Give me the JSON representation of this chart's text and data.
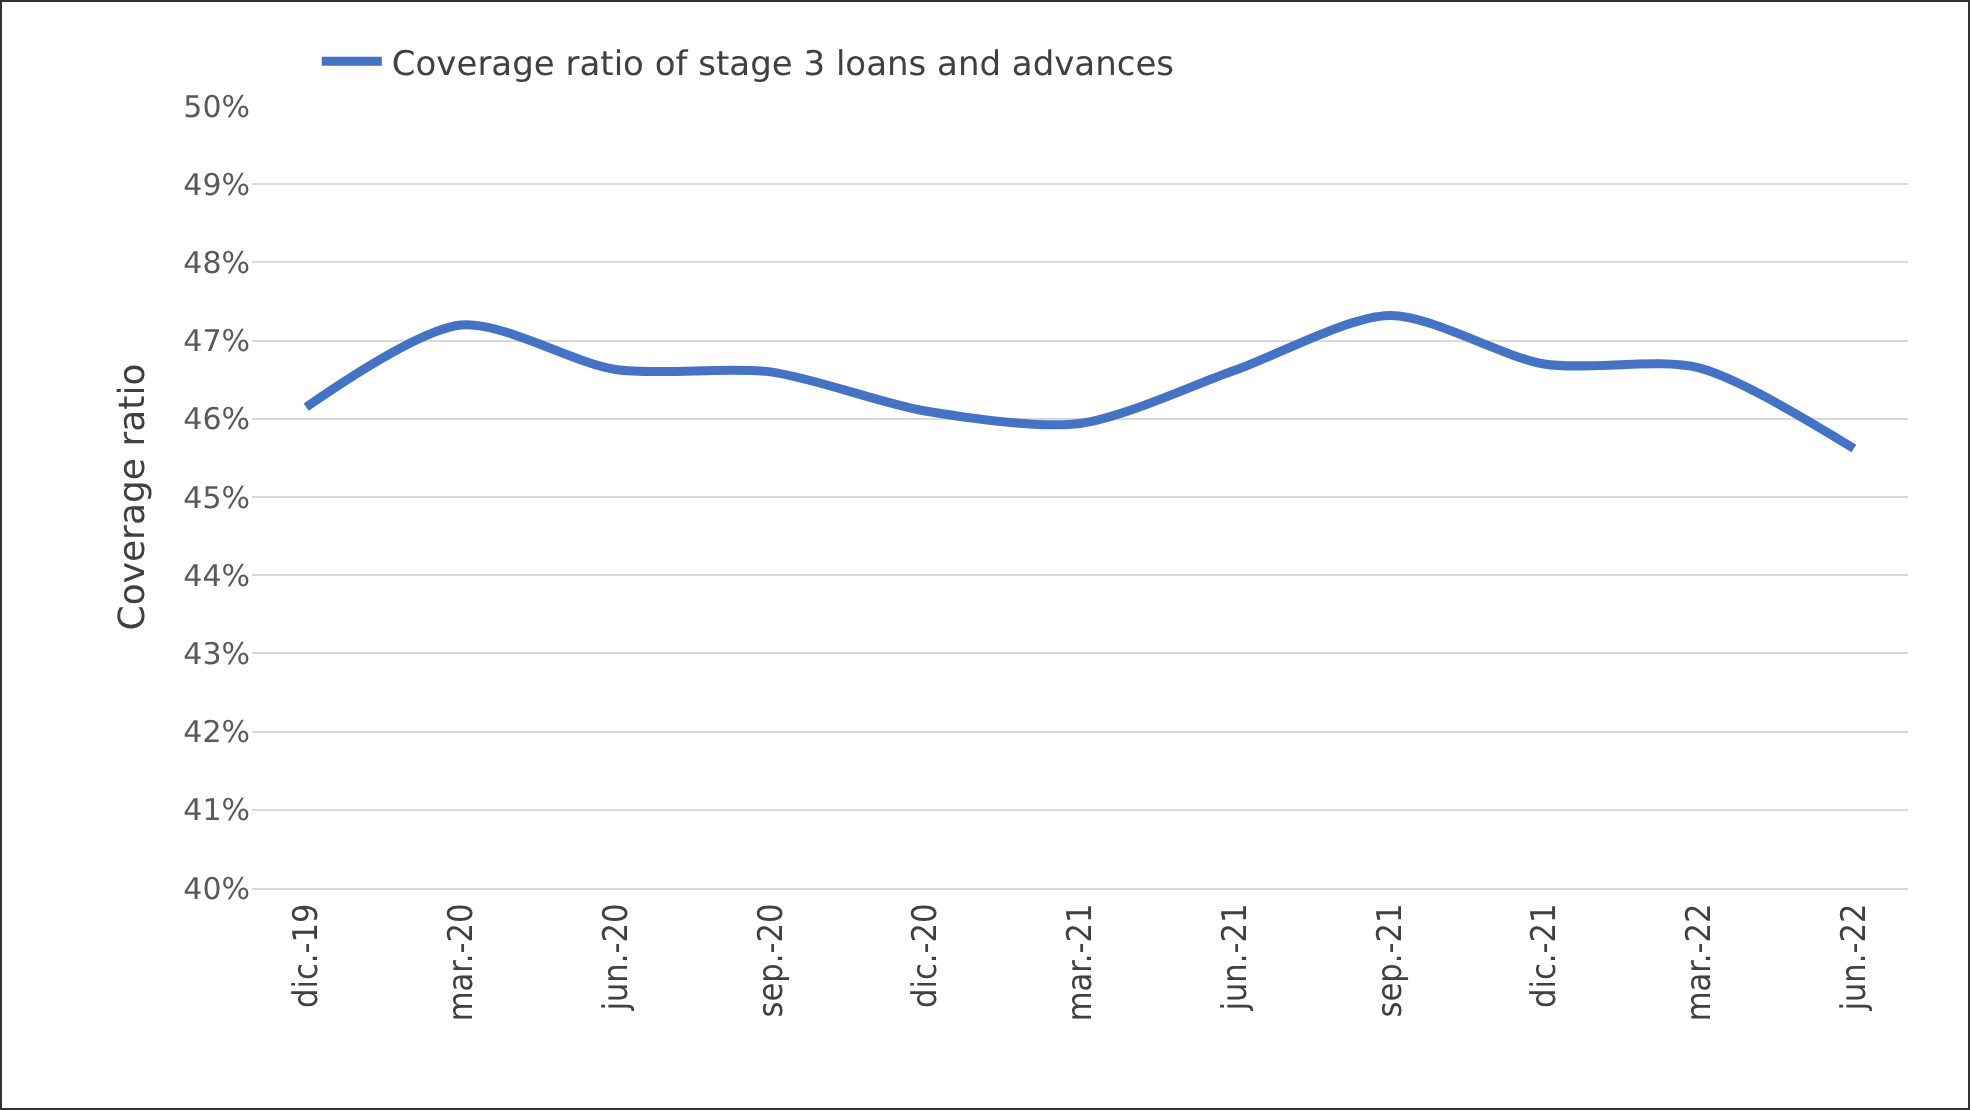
{
  "chart_data": {
    "type": "line",
    "ylabel": "Coverage ratio",
    "categories": [
      "dic.-19",
      "mar.-20",
      "jun.-20",
      "sep.-20",
      "dic.-20",
      "mar.-21",
      "jun.-21",
      "sep.-21",
      "dic.-21",
      "mar.-22",
      "jun.-22"
    ],
    "series": [
      {
        "name": "Coverage ratio of stage 3 loans and advances",
        "color": "#4472c4",
        "values": [
          46.15,
          47.2,
          46.63,
          46.6,
          46.1,
          45.94,
          46.62,
          47.32,
          46.7,
          46.65,
          45.62
        ]
      }
    ],
    "ylim": [
      40,
      50
    ],
    "yticks": [
      {
        "value": 40,
        "label": "40%"
      },
      {
        "value": 41,
        "label": "41%"
      },
      {
        "value": 42,
        "label": "42%"
      },
      {
        "value": 43,
        "label": "43%"
      },
      {
        "value": 44,
        "label": "44%"
      },
      {
        "value": 45,
        "label": "45%"
      },
      {
        "value": 46,
        "label": "46%"
      },
      {
        "value": 47,
        "label": "47%"
      },
      {
        "value": 48,
        "label": "48%"
      },
      {
        "value": 49,
        "label": "49%"
      },
      {
        "value": 50,
        "label": "50%"
      }
    ],
    "grid": "y",
    "legend": "top",
    "marker": "none",
    "line_style": "solid"
  }
}
